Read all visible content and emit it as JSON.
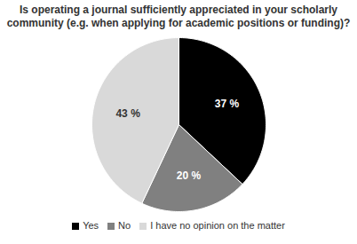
{
  "chart_data": {
    "type": "pie",
    "title": "Is operating a journal sufficiently appreciated in your scholarly community (e.g. when applying for academic positions or funding)?",
    "categories": [
      "Yes",
      "No",
      "I have no opinion on the matter"
    ],
    "values": [
      37,
      20,
      43
    ],
    "value_labels": [
      "37 %",
      "20 %",
      "43 %"
    ],
    "colors": [
      "#000000",
      "#808080",
      "#d9d9d9"
    ],
    "data_labels": true,
    "legend": "bottom"
  }
}
